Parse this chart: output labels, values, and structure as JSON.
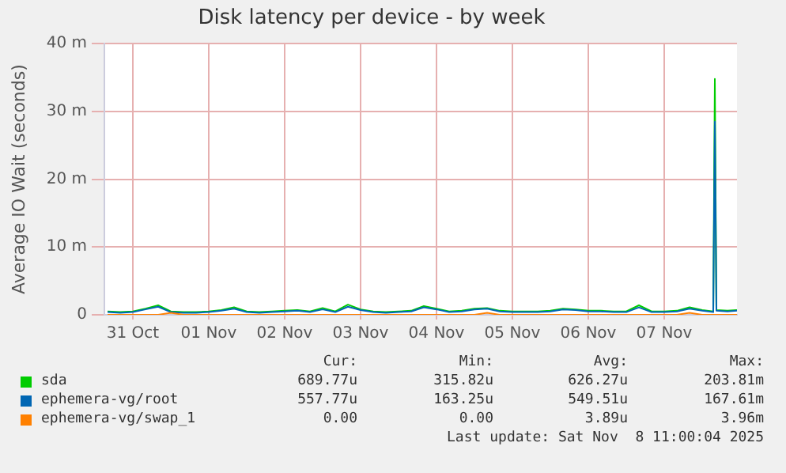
{
  "chart_data": {
    "type": "line",
    "title": "Disk latency per device - by week",
    "ylabel": "Average IO Wait (seconds)",
    "x": [
      "2025-10-31T04:00",
      "2025-10-31T08:00",
      "2025-10-31T12:00",
      "2025-10-31T16:00",
      "2025-10-31T20:00",
      "2025-11-01T00:00",
      "2025-11-01T04:00",
      "2025-11-01T08:00",
      "2025-11-01T12:00",
      "2025-11-01T16:00",
      "2025-11-01T20:00",
      "2025-11-02T00:00",
      "2025-11-02T04:00",
      "2025-11-02T08:00",
      "2025-11-02T12:00",
      "2025-11-02T16:00",
      "2025-11-02T20:00",
      "2025-11-03T00:00",
      "2025-11-03T04:00",
      "2025-11-03T08:00",
      "2025-11-03T12:00",
      "2025-11-03T16:00",
      "2025-11-03T20:00",
      "2025-11-04T00:00",
      "2025-11-04T04:00",
      "2025-11-04T08:00",
      "2025-11-04T12:00",
      "2025-11-04T16:00",
      "2025-11-04T20:00",
      "2025-11-05T00:00",
      "2025-11-05T04:00",
      "2025-11-05T08:00",
      "2025-11-05T12:00",
      "2025-11-05T16:00",
      "2025-11-05T20:00",
      "2025-11-06T00:00",
      "2025-11-06T04:00",
      "2025-11-06T08:00",
      "2025-11-06T12:00",
      "2025-11-06T16:00",
      "2025-11-06T20:00",
      "2025-11-07T00:00",
      "2025-11-07T04:00",
      "2025-11-07T08:00",
      "2025-11-07T12:00",
      "2025-11-07T16:00",
      "2025-11-07T20:00",
      "2025-11-08T00:00",
      "2025-11-08T03:30",
      "2025-11-08T04:00",
      "2025-11-08T04:30",
      "2025-11-08T08:00",
      "2025-11-08T11:00"
    ],
    "series": [
      {
        "name": "sda",
        "color": "#00cc00",
        "values": [
          0.5,
          0.4,
          0.5,
          0.9,
          1.4,
          0.5,
          0.4,
          0.4,
          0.5,
          0.7,
          1.1,
          0.5,
          0.4,
          0.5,
          0.6,
          0.7,
          0.5,
          1.0,
          0.5,
          1.5,
          0.8,
          0.5,
          0.4,
          0.5,
          0.6,
          1.3,
          0.9,
          0.5,
          0.6,
          0.9,
          1.0,
          0.6,
          0.5,
          0.5,
          0.5,
          0.6,
          0.9,
          0.8,
          0.6,
          0.6,
          0.5,
          0.5,
          1.4,
          0.5,
          0.5,
          0.6,
          1.1,
          0.7,
          0.5,
          34.8,
          0.7,
          0.6,
          0.7
        ]
      },
      {
        "name": "ephemera-vg/root",
        "color": "#0066b3",
        "values": [
          0.4,
          0.3,
          0.4,
          0.8,
          1.2,
          0.4,
          0.3,
          0.3,
          0.4,
          0.6,
          0.9,
          0.4,
          0.3,
          0.4,
          0.5,
          0.6,
          0.4,
          0.8,
          0.4,
          1.2,
          0.7,
          0.4,
          0.3,
          0.4,
          0.5,
          1.1,
          0.8,
          0.4,
          0.5,
          0.8,
          0.9,
          0.5,
          0.4,
          0.4,
          0.4,
          0.5,
          0.8,
          0.7,
          0.5,
          0.5,
          0.4,
          0.4,
          1.1,
          0.4,
          0.4,
          0.5,
          0.9,
          0.6,
          0.4,
          28.5,
          0.6,
          0.5,
          0.6
        ]
      },
      {
        "name": "ephemera-vg/swap_1",
        "color": "#ff8000",
        "values": [
          0,
          0,
          0,
          0,
          0,
          0.3,
          0,
          0,
          0,
          0,
          0,
          0,
          0,
          0,
          0,
          0,
          0,
          0,
          0,
          0,
          0,
          0,
          0,
          0,
          0,
          0,
          0,
          0,
          0,
          0,
          0.3,
          0,
          0,
          0,
          0,
          0,
          0,
          0,
          0,
          0,
          0,
          0,
          0,
          0,
          0,
          0,
          0.3,
          0,
          0,
          0,
          0,
          0,
          0
        ]
      }
    ],
    "xlim": [
      "2025-10-31T03:00",
      "2025-11-08T11:00"
    ],
    "xticks": [
      {
        "value": "2025-10-31T12:00",
        "label": "31 Oct"
      },
      {
        "value": "2025-11-01T12:00",
        "label": "01 Nov"
      },
      {
        "value": "2025-11-02T12:00",
        "label": "02 Nov"
      },
      {
        "value": "2025-11-03T12:00",
        "label": "03 Nov"
      },
      {
        "value": "2025-11-04T12:00",
        "label": "04 Nov"
      },
      {
        "value": "2025-11-05T12:00",
        "label": "05 Nov"
      },
      {
        "value": "2025-11-06T12:00",
        "label": "06 Nov"
      },
      {
        "value": "2025-11-07T12:00",
        "label": "07 Nov"
      }
    ],
    "ylim": [
      0,
      40
    ],
    "yticks": [
      0,
      {
        "value": 10,
        "label": "10 m"
      },
      {
        "value": 20,
        "label": "20 m"
      },
      {
        "value": 30,
        "label": "30 m"
      },
      {
        "value": 40,
        "label": "40 m"
      }
    ],
    "grid": true,
    "legend": "bottom",
    "marker": "none",
    "line_style": "solid",
    "annotations": [
      "Cur:",
      "Min:",
      "Avg:",
      "Max:",
      "689.77u",
      "315.82u",
      "626.27u",
      "203.81m",
      "557.77u",
      "163.25u",
      "549.51u",
      "167.61m",
      "0.00",
      "0.00",
      "3.89u",
      "3.96m",
      "Last update: Sat Nov  8 11:00:04 2025"
    ]
  }
}
